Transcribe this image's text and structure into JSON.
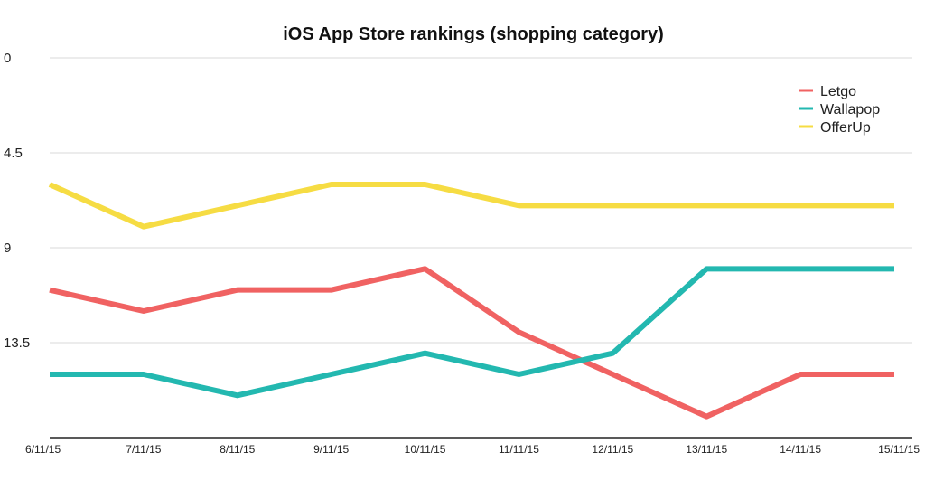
{
  "chart_data": {
    "type": "line",
    "title": "iOS App Store rankings (shopping category)",
    "xlabel": "",
    "ylabel": "",
    "categories": [
      "6/11/15",
      "7/11/15",
      "8/11/15",
      "9/11/15",
      "10/11/15",
      "11/11/15",
      "12/11/15",
      "13/11/15",
      "14/11/15",
      "15/11/15"
    ],
    "y_ticks": [
      "0",
      "4.5",
      "9",
      "13.5"
    ],
    "y_tick_values": [
      0,
      4.5,
      9,
      13.5
    ],
    "ylim": [
      0,
      18
    ],
    "y_inverted": true,
    "grid": "horizontal",
    "legend_position": "top-right",
    "series": [
      {
        "name": "Letgo",
        "color": "#f06262",
        "values": [
          11,
          12,
          11,
          11,
          10,
          13,
          15,
          17,
          15,
          15
        ]
      },
      {
        "name": "Wallapop",
        "color": "#23b8b0",
        "values": [
          15,
          15,
          16,
          15,
          14,
          15,
          14,
          10,
          10,
          10
        ]
      },
      {
        "name": "OfferUp",
        "color": "#f6dc43",
        "values": [
          6,
          8,
          7,
          6,
          6,
          7,
          7,
          7,
          7,
          7
        ]
      }
    ]
  }
}
